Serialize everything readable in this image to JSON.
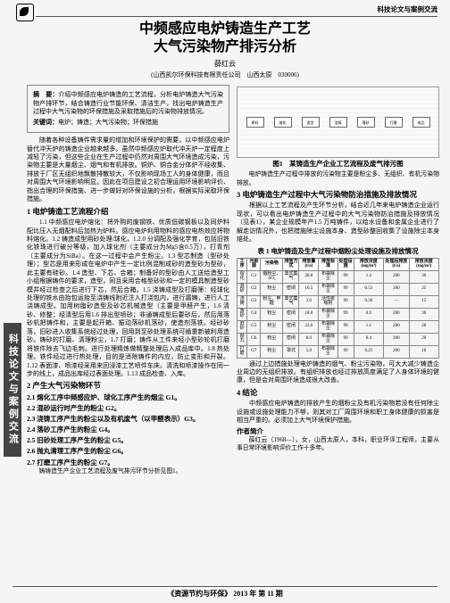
{
  "header": "科技论文与案例交流",
  "title_l1": "中频感应电炉铸造生产工艺",
  "title_l2": "大气污染物产排污分析",
  "author": "薛红云",
  "affiliation": "(山西凯尔环保科技有限责任公司　山西太原　030006)",
  "abstract_label": "摘　要：",
  "abstract_text": "介绍中频感应电炉铸造的工艺流程，分析电炉铸造大气污染物产排环节，结合铸造行业节能环保、清洁生产，找出电炉铸造生产过程中大气污染物的环保措施及采取措施后的污染物排放情况。",
  "keywords_label": "关键词：",
  "keywords_text": "电炉；铸造；大气污染物；环保措施",
  "intro": "随着各种设备铸件需求量的增加和环境保护的需要，以中频感应电炉替代冲天炉的铸造企业越来越多。虽然中频感应炉取代冲天炉一定程度上减轻了污染，但这些企业在生产过程中仍然对周围大气环境造成污染，污染物主要是大量烟尘、烟气和有机排放。铜炉、铜合金分体炉不经收集、排放于厂区无组织地飘散排散较大，不仅影响现场工人的身体健康，而且对周围大气环境影响明显。因此在项目建设之初合理运用环境影响评价、指出合理的环保措施、进一步做好对环保设施的分析，根据实际采取环保措施。",
  "sec1": "1 电炉铸造工艺流程介绍",
  "para1_1": "1.1 中频感应电炉熔化：将外购的废钢铁、优质低碳钢板以及同炉料配比压入无烟配料后加热为炉料。感应电炉利用物料的感应电热效应将物料熔化。1.2 铸造成型用砂处理/球化，1.2.0 分调配及强化学育，包括旧铁化铁珠进行破分等级，加入球化剂（主要成分为Mg5含0.5万），打青剂（主要成分为SiBa）。在这一过程中会产生粉尘。1.3 型芯制造（型砂处理）；型芯是用来形成在电炉中产生一定比例混制成砂的造型砂为型砂，此主要有硅砂。1.4 造型、下芯、合箱；制备好的型砂由人工送给造型工小组根据铸件的要求，造型，同且采用合格型砂砂和一定的模具制造型砂模并经过检查之后进行下芯，然后合箱。1.5 浇铸成型及打磨筛：经球化处理的铁水由抬包运抬至浇铸线附近注入打浇包内，进行漏铸，进行人工浇铸成型。加用树脂砂造型及砂芯机械造型（主要是甲醛产生，1.6 清砂、修整；经清型后用1.6 排出型喷砂；非通铸成型后要砂后，然后用落砂机把铸件和，主要是起开箱、振动落砂机落砂，使造剂落铁。经砂砂落，旧砂进入收集系统经过处理，回用到至砂处理系统可循重新被利用造砂。铸砂的打磨、清理粉尘，1.7 打磨；铸件从工件来经小型砂轮机打磨将铁件除去飞边毛刺。进行处理精炼做精整处理后入成品库中。1.8 热处理。铁件经过进行热处理，目的是消除铸件的内应，防止变形和开裂。1.12 表面漆、喷漆经采用来回浸漆工艺喷件车床。清洗和喷漆操作在同一步的线上，成品出库经过表面处理。1.13 成品检查、入库。",
  "sec2": "2 产生大气污染物环节",
  "sub2_1": "2.1 熔化工序中频感应炉、球化工序产生的烟尘 G1。",
  "sub2_2": "2.2 混砂运行时产生的粉尘 G2。",
  "sub2_3": "2.3 浇铸工序产生的粉尘以及有机废气（以甲醛表示）G3。",
  "sub2_4": "2.4 落砂工序产生的粉尘 G4。",
  "sub2_5": "2.5 旧砂处理工序产生的粉尘 G5。",
  "sub2_6": "2.6 抛丸清理工序产生的粉尘 G6。",
  "sub2_7": "2.7 打磨工序产生的粉尘 G7。",
  "para2_end": "铸铸造生产企业工艺流程及废气排污环节分析见图1。",
  "figcap1": "图1　某铸造生产企业工艺流程及废气排污图",
  "figpara": "电炉铸造生产过程中排放的污染物主要是粉尘多、无组织、有机污染物排放。",
  "sec3": "3 电炉铸造生产过程中大气污染物防治措施及排放情况",
  "para3": "根据以上工艺流程及产生环节分析，结合近几年来电炉铸造企业运行现状，可以看出电炉铸造生产过程中的大气污染物防治措施及排放情况（见表1），某企业规模年产1.5 万吨铸件，以给水设备和金属企业进行了解走访情况外，也把措施除尘设施本身、造型砂整回收集了设施除尘本身焙处。",
  "tablecap": "表 1 电炉铸造及生产过程中烟粉尘处理设施及排放情况",
  "table": {
    "headers": [
      "工序",
      "污染源",
      "污染物",
      "排放方式",
      "排放量(t/a)",
      "排放标准",
      "处理设施",
      "排放浓度(mg/m³)",
      "处理后排放(t/a)",
      "排放浓度(mg/m³)"
    ],
    "rows": [
      [
        "熔化",
        "G1",
        "烟粉尘、SO₂",
        "罩式集气",
        "28.0",
        "布袋除尘",
        "99",
        "1.4",
        "200",
        "30"
      ],
      [
        "混砂",
        "G2",
        "粉尘",
        "密闭",
        "10.5",
        "布袋除尘",
        "99",
        "0.53",
        "200",
        "25"
      ],
      [
        "浇铸",
        "G3",
        "粉尘、甲醛",
        "罩式集气",
        "3.6",
        "活性炭吸附",
        "90",
        "0.36",
        "—",
        "15"
      ],
      [
        "落砂",
        "G4",
        "粉尘",
        "密闭",
        "18.0",
        "布袋除尘",
        "99",
        "0.9",
        "200",
        "30"
      ],
      [
        "旧砂",
        "G5",
        "粉尘",
        "密闭",
        "22.0",
        "布袋除尘",
        "99",
        "1.1",
        "200",
        "28"
      ],
      [
        "抛丸",
        "G6",
        "粉尘",
        "密闭",
        "8.0",
        "布袋除尘",
        "99",
        "0.4",
        "200",
        "20"
      ],
      [
        "打磨",
        "G7",
        "粉尘",
        "罩式",
        "5.0",
        "布袋除尘",
        "99",
        "0.25",
        "200",
        "18"
      ]
    ]
  },
  "para3b": "通过上边措施处理电炉铸造的烟气、粉尘污染物，可大大减少铸造企业周边的无组织排放。有组织排放也经过排放高度满足了人身体环境的健康，但是会对周围环境造成很大改善。",
  "sec4": "4 结论",
  "para4": "中频感应电炉铸造的排放产生的烟粉尘及有机污染物若没有任何除尘设施或设施处理能力不够，则其对工厂周围环境和职工身体健康的损害是相当严重的。必须加上大气环境保护措施。",
  "bio_label": "作者简介",
  "bio": "薛红云（1968—），女，山西太原人，本科，职业环评工程师，主要从事日常环境影响评价工作十多年。",
  "footer": "《资源节约与环保》 2013 年  第 11 期",
  "sidebar": "科技论文与案例交流"
}
